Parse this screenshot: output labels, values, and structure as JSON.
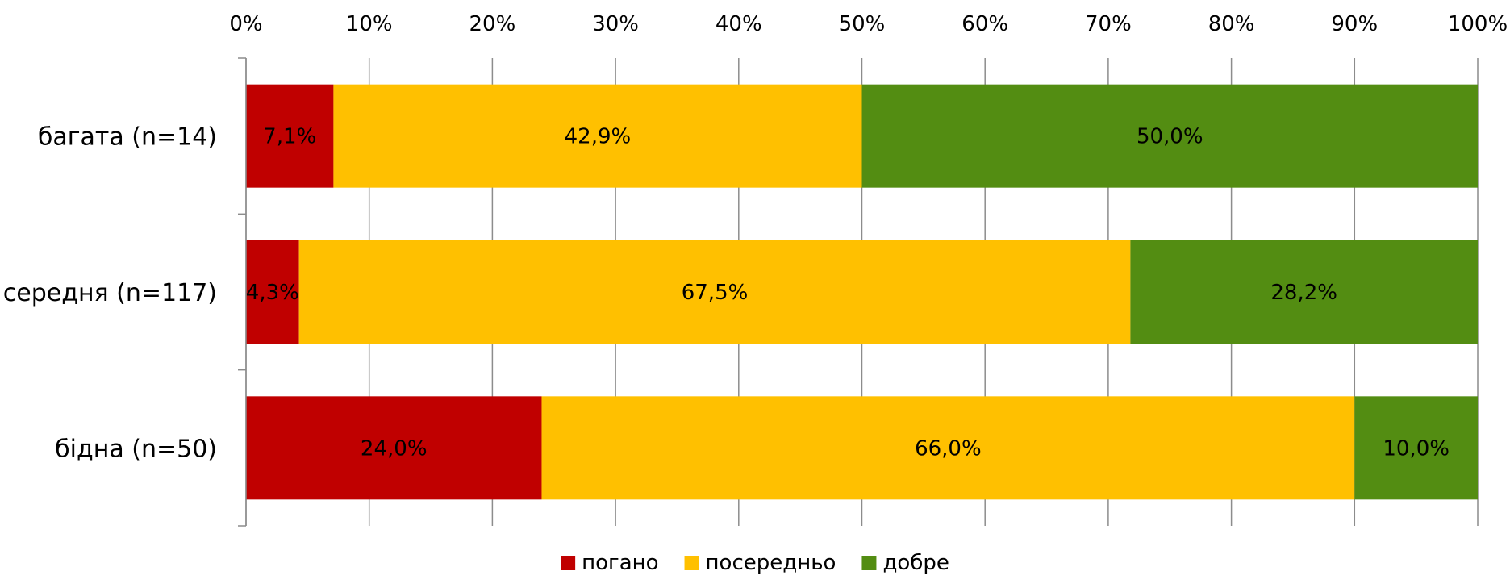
{
  "chart_data": {
    "type": "bar",
    "orientation": "horizontal",
    "stacked": "percent",
    "categories": [
      "багата (n=14)",
      "середня (n=117)",
      "бідна (n=50)"
    ],
    "series": [
      {
        "name": "погано",
        "color": "#c00000",
        "values": [
          7.1,
          4.3,
          24.0
        ],
        "labels": [
          "7,1%",
          "4,3%",
          "24,0%"
        ]
      },
      {
        "name": "посередньо",
        "color": "#ffc000",
        "values": [
          42.9,
          67.5,
          66.0
        ],
        "labels": [
          "42,9%",
          "67,5%",
          "66,0%"
        ]
      },
      {
        "name": "добре",
        "color": "#538d12",
        "values": [
          50.0,
          28.2,
          10.0
        ],
        "labels": [
          "50,0%",
          "28,2%",
          "10,0%"
        ]
      }
    ],
    "xlim": [
      0,
      100
    ],
    "xticks": [
      "0%",
      "10%",
      "20%",
      "30%",
      "40%",
      "50%",
      "60%",
      "70%",
      "80%",
      "90%",
      "100%"
    ],
    "x_axis_position": "top",
    "grid": "vertical",
    "legend_position": "bottom"
  }
}
